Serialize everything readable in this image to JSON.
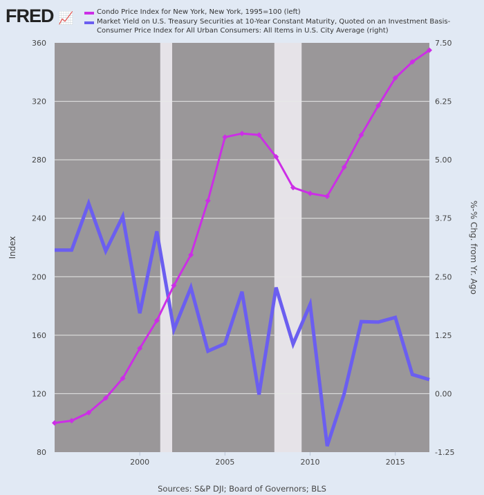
{
  "logo": "FRED",
  "chart_data": {
    "type": "line",
    "x": [
      1995,
      1996,
      1997,
      1998,
      1999,
      2000,
      2001,
      2002,
      2003,
      2004,
      2005,
      2006,
      2007,
      2008,
      2009,
      2010,
      2011,
      2012,
      2013,
      2014,
      2015,
      2016,
      2017
    ],
    "series": [
      {
        "name": "Condo Price Index for New York, New York, 1995=100 (left)",
        "axis": "left",
        "color": "#cc2ee6",
        "values": [
          100,
          101.5,
          107,
          117,
          130.5,
          151,
          170,
          194,
          215,
          252,
          295.5,
          298,
          297,
          282,
          261,
          257,
          255,
          275,
          297,
          317,
          336,
          347,
          355
        ]
      },
      {
        "name": "Market Yield on U.S. Treasury Securities at 10-Year Constant Maturity, Quoted on an Investment Basis-Consumer Price Index for All Urban Consumers: All Items in U.S. City Average (right)",
        "axis": "right",
        "color": "#6b5ef0",
        "values": [
          3.07,
          3.07,
          4.07,
          3.05,
          3.79,
          1.72,
          3.47,
          1.37,
          2.27,
          0.91,
          1.07,
          2.18,
          -0.02,
          2.27,
          1.06,
          1.91,
          -1.12,
          0.0,
          1.54,
          1.53,
          1.63,
          0.41,
          0.3
        ]
      }
    ],
    "xlim": [
      1995,
      2017
    ],
    "xticks": [
      "2000",
      "2005",
      "2010",
      "2015"
    ],
    "ylabel": "Index",
    "ylim": [
      80,
      360
    ],
    "yticks": [
      "80",
      "120",
      "160",
      "200",
      "240",
      "280",
      "320",
      "360"
    ],
    "y2label": "%-% Chg. from Yr. Ago",
    "y2lim": [
      -1.25,
      7.5
    ],
    "y2ticks": [
      "-1.25",
      "0.00",
      "1.25",
      "2.50",
      "3.75",
      "5.00",
      "6.25",
      "7.50"
    ],
    "recessions": [
      [
        2001.2,
        2001.9
      ],
      [
        2007.9,
        2009.5
      ]
    ],
    "grid": true,
    "legend": "top",
    "plot_background": "#9a9799"
  },
  "source": "Sources: S&P DJI; Board of Governors; BLS"
}
